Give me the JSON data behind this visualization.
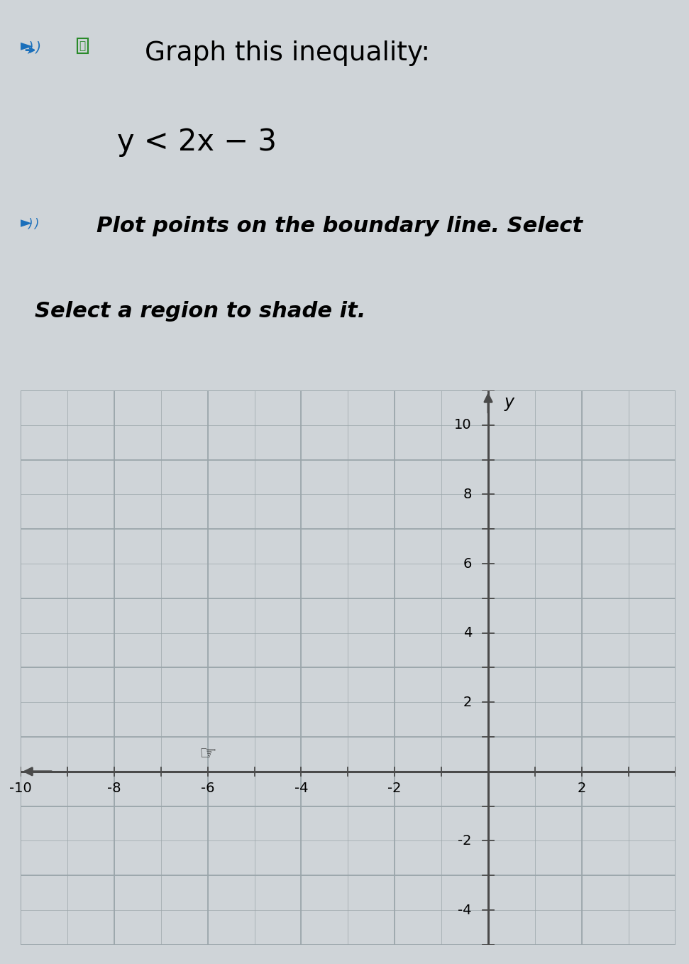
{
  "bg_color": "#cfd4d8",
  "grid_color": "#9aa5aa",
  "axis_color": "#4a4a4a",
  "xmin": -10,
  "xmax": 4,
  "ymin": -5,
  "ymax": 11,
  "x_label_ticks": [
    -10,
    -8,
    -6,
    -4,
    -2,
    2
  ],
  "y_label_ticks": [
    -4,
    -2,
    2,
    4,
    6,
    8,
    10
  ],
  "title_line1": "Graph this inequality:",
  "inequality": "y < 2x − 3",
  "instruction1": "Plot points on the boundary line. Select",
  "instruction2": "Select a region to shade it.",
  "cursor_x": -6.0,
  "cursor_y": 0.5
}
